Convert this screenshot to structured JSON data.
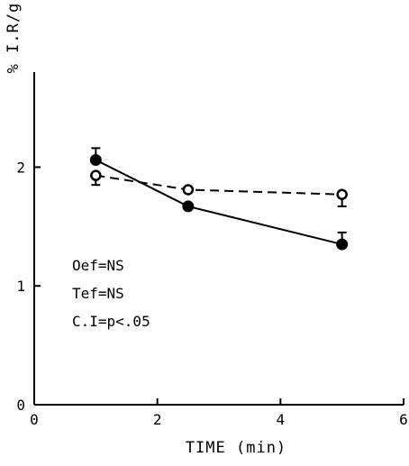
{
  "chart_data": {
    "type": "line",
    "title": "",
    "xlabel": "TIME (min)",
    "ylabel": "% I.R/g",
    "xlim": [
      0,
      6
    ],
    "ylim": [
      0,
      2.8
    ],
    "xticks": [
      0,
      2,
      4,
      6
    ],
    "yticks": [
      0,
      1,
      2
    ],
    "xtick_labels": [
      "0",
      "2",
      "4",
      "6"
    ],
    "ytick_labels": [
      "0",
      "1",
      "2"
    ],
    "grid": false,
    "series": [
      {
        "marker": "filled-circle",
        "line": "solid",
        "color": "#000000",
        "x": [
          1,
          2.5,
          5
        ],
        "y": [
          2.06,
          1.67,
          1.35
        ],
        "error_bar": [
          0.1,
          0,
          0.1
        ],
        "error_bar_direction": [
          "up",
          "none",
          "up"
        ]
      },
      {
        "marker": "open-circle",
        "line": "dashed",
        "color": "#000000",
        "x": [
          1,
          2.5,
          5
        ],
        "y": [
          1.93,
          1.81,
          1.77
        ],
        "error_bar": [
          0.08,
          0,
          0.1
        ],
        "error_bar_direction": [
          "down",
          "none",
          "down"
        ]
      }
    ],
    "annotations": [
      "Oef=NS",
      "Tef=NS",
      "C.I=p<.05"
    ]
  }
}
